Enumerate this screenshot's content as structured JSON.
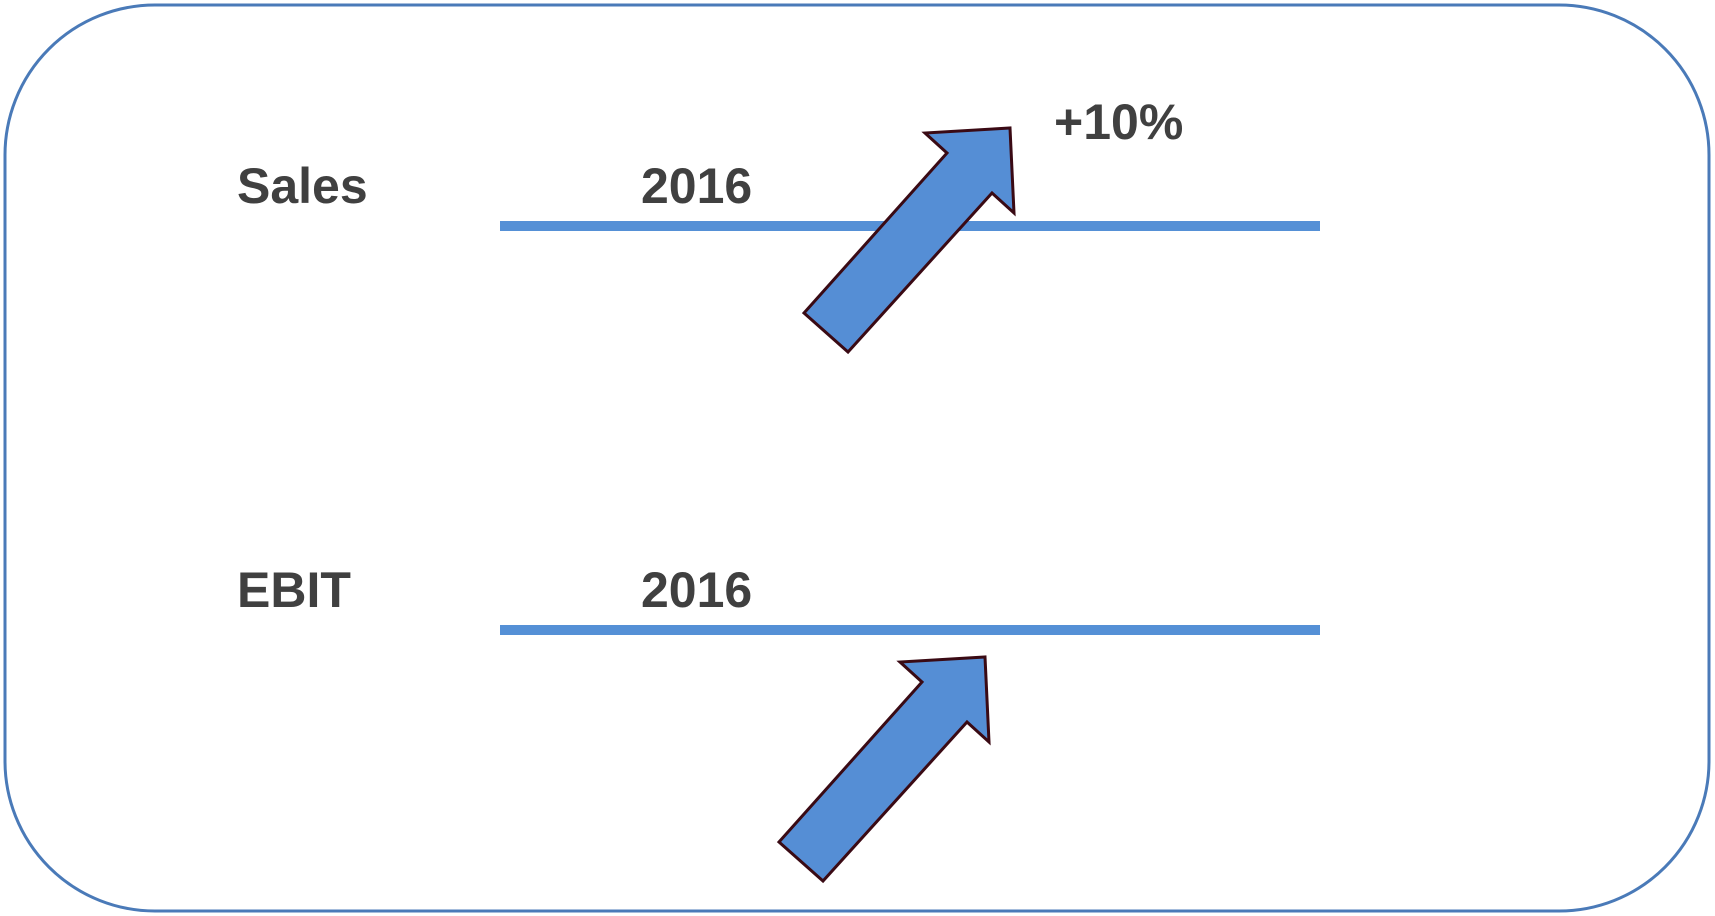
{
  "rows": [
    {
      "metric": "Sales",
      "year": "2016",
      "change": "+10%"
    },
    {
      "metric": "EBIT",
      "year": "2016",
      "change": ""
    }
  ],
  "colors": {
    "frame": "#4a7ab8",
    "line": "#5590d6",
    "arrow_fill": "#558ed5",
    "arrow_stroke": "#3a0a14",
    "text": "#404040"
  }
}
